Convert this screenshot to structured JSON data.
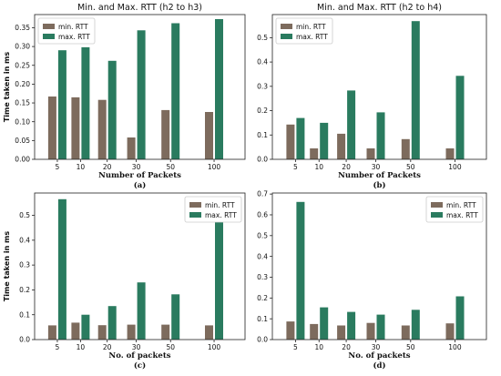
{
  "colors": {
    "min": "#7d6b5d",
    "max": "#2a7b5f"
  },
  "chart_data": [
    {
      "type": "bar",
      "panel": "a",
      "title": "Min. and Max. RTT (h2 to h3)",
      "xlabel": "Number of Packets",
      "ylabel": "Time taken in ms",
      "subcaption": "(a)",
      "categories": [
        "5",
        "10",
        "20",
        "30",
        "50",
        "100"
      ],
      "series": [
        {
          "name": "min. RTT",
          "values": [
            0.167,
            0.165,
            0.158,
            0.058,
            0.131,
            0.126
          ]
        },
        {
          "name": "max. RTT",
          "values": [
            0.29,
            0.298,
            0.262,
            0.343,
            0.362,
            0.373
          ]
        }
      ],
      "ylim": [
        0,
        0.385
      ],
      "yticks": [
        0.0,
        0.05,
        0.1,
        0.15,
        0.2,
        0.25,
        0.3,
        0.35
      ],
      "ytick_labels": [
        "0.00",
        "0.05",
        "0.10",
        "0.15",
        "0.20",
        "0.25",
        "0.30",
        "0.35"
      ],
      "legend_placement": "top-left",
      "grid": false
    },
    {
      "type": "bar",
      "panel": "b",
      "title": "Min. and Max. RTT (h2 to h4)",
      "xlabel": "Number of Packets",
      "ylabel": "",
      "subcaption": "(b)",
      "categories": [
        "5",
        "10",
        "20",
        "30",
        "50",
        "100"
      ],
      "series": [
        {
          "name": "min. RTT",
          "values": [
            0.143,
            0.045,
            0.105,
            0.045,
            0.083,
            0.045
          ]
        },
        {
          "name": "max. RTT",
          "values": [
            0.17,
            0.15,
            0.283,
            0.193,
            0.568,
            0.343
          ]
        }
      ],
      "ylim": [
        0,
        0.595
      ],
      "yticks": [
        0.0,
        0.1,
        0.2,
        0.3,
        0.4,
        0.5
      ],
      "ytick_labels": [
        "0.0",
        "0.1",
        "0.2",
        "0.3",
        "0.4",
        "0.5"
      ],
      "legend_placement": "top-left",
      "grid": false
    },
    {
      "type": "bar",
      "panel": "c",
      "title": "",
      "xlabel": "No. of packets",
      "ylabel": "Time taken in ms",
      "subcaption": "(c)",
      "categories": [
        "5",
        "10",
        "20",
        "30",
        "50",
        "100"
      ],
      "series": [
        {
          "name": "min. RTT",
          "values": [
            0.057,
            0.068,
            0.058,
            0.06,
            0.06,
            0.057
          ]
        },
        {
          "name": "max. RTT",
          "values": [
            0.565,
            0.1,
            0.135,
            0.23,
            0.182,
            0.51
          ]
        }
      ],
      "ylim": [
        0,
        0.59
      ],
      "yticks": [
        0.0,
        0.1,
        0.2,
        0.3,
        0.4,
        0.5
      ],
      "ytick_labels": [
        "0.0",
        "0.1",
        "0.2",
        "0.3",
        "0.4",
        "0.5"
      ],
      "legend_placement": "top-right",
      "grid": false
    },
    {
      "type": "bar",
      "panel": "d",
      "title": "",
      "xlabel": "No. of packets",
      "ylabel": "",
      "subcaption": "(d)",
      "categories": [
        "5",
        "10",
        "20",
        "30",
        "50",
        "100"
      ],
      "series": [
        {
          "name": "min. RTT",
          "values": [
            0.087,
            0.075,
            0.068,
            0.08,
            0.068,
            0.078
          ]
        },
        {
          "name": "max. RTT",
          "values": [
            0.662,
            0.155,
            0.133,
            0.12,
            0.143,
            0.208
          ]
        }
      ],
      "ylim": [
        0,
        0.705
      ],
      "yticks": [
        0.0,
        0.1,
        0.2,
        0.3,
        0.4,
        0.5,
        0.6,
        0.7
      ],
      "ytick_labels": [
        "0.0",
        "0.1",
        "0.2",
        "0.3",
        "0.4",
        "0.5",
        "0.6",
        "0.7"
      ],
      "legend_placement": "top-right",
      "grid": false
    }
  ]
}
